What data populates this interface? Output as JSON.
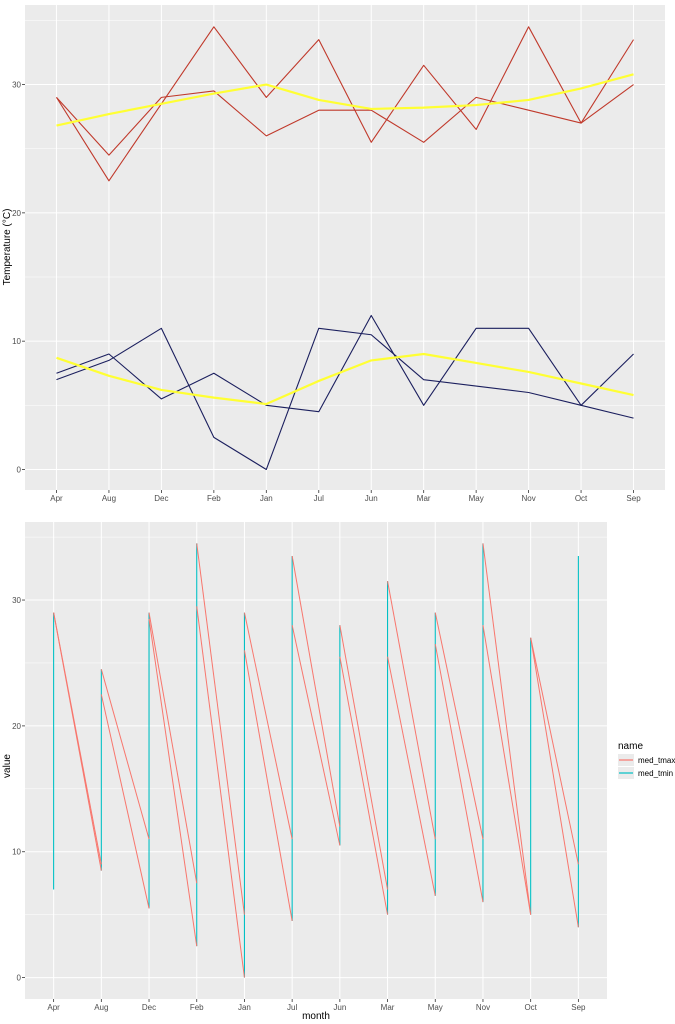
{
  "chart_data": [
    {
      "type": "line",
      "title": "",
      "xlabel": "",
      "ylabel": "Temperature (°C)",
      "categories": [
        "Apr",
        "Aug",
        "Dec",
        "Feb",
        "Jan",
        "Jul",
        "Jun",
        "Mar",
        "May",
        "Nov",
        "Oct",
        "Sep"
      ],
      "yticks": [
        0,
        10,
        20,
        30
      ],
      "ylim": [
        -1.6,
        36.2
      ],
      "grid": true,
      "background": "#ebebeb",
      "series": [
        {
          "color": "#c0392b",
          "kind": "line",
          "values": [
            29,
            22.5,
            28.5,
            34.5,
            29,
            33.5,
            25.5,
            31.5,
            26.5,
            34.5,
            27,
            33.5
          ]
        },
        {
          "color": "#c0392b",
          "kind": "line",
          "values": [
            29,
            24.5,
            29,
            29.5,
            26,
            28,
            28,
            25.5,
            29,
            28,
            27,
            30
          ]
        },
        {
          "color": "#1b1f5e",
          "kind": "line",
          "values": [
            7.5,
            9,
            5.5,
            7.5,
            5,
            4.5,
            12,
            5,
            11,
            11,
            5,
            9
          ]
        },
        {
          "color": "#1b1f5e",
          "kind": "line",
          "values": [
            7,
            8.5,
            11,
            2.5,
            0,
            11,
            10.5,
            7,
            6.5,
            6,
            5,
            4
          ]
        },
        {
          "color": "#ffff33",
          "kind": "smooth",
          "values": [
            26.8,
            27.7,
            28.5,
            29.3,
            30,
            28.8,
            28.1,
            28.2,
            28.4,
            28.8,
            29.7,
            30.8
          ]
        },
        {
          "color": "#ffff33",
          "kind": "smooth",
          "values": [
            8.7,
            7.3,
            6.2,
            5.6,
            5.1,
            6.9,
            8.5,
            9,
            8.3,
            7.6,
            6.7,
            5.8
          ]
        }
      ]
    },
    {
      "type": "line",
      "title": "",
      "xlabel": "month",
      "ylabel": "value",
      "categories": [
        "Apr",
        "Aug",
        "Dec",
        "Feb",
        "Jan",
        "Jul",
        "Jun",
        "Mar",
        "May",
        "Nov",
        "Oct",
        "Sep"
      ],
      "yticks": [
        0,
        10,
        20,
        30
      ],
      "ylim": [
        -1.7,
        36.2
      ],
      "grid": true,
      "background": "#ebebeb",
      "legend": {
        "title": "name",
        "position": "right"
      },
      "series": [
        {
          "name": "med_tmax",
          "color": "#F8766D",
          "values": [
            [
              29,
              29
            ],
            [
              24.5,
              22.5
            ],
            [
              29,
              28.5
            ],
            [
              34.5,
              29.5
            ],
            [
              29,
              26
            ],
            [
              33.5,
              28
            ],
            [
              28,
              25.5
            ],
            [
              31.5,
              25.5
            ],
            [
              29,
              26.5
            ],
            [
              34.5,
              28
            ],
            [
              27,
              27
            ],
            [
              33.5,
              30
            ]
          ]
        },
        {
          "name": "med_tmin",
          "color": "#00BFC4",
          "values": [
            [
              7.5,
              7
            ],
            [
              9,
              8.5
            ],
            [
              11,
              5.5
            ],
            [
              7.5,
              2.5
            ],
            [
              5,
              0
            ],
            [
              11,
              4.5
            ],
            [
              12,
              10.5
            ],
            [
              7,
              5
            ],
            [
              11,
              6.5
            ],
            [
              11,
              6
            ],
            [
              5,
              5
            ],
            [
              9,
              4
            ]
          ]
        }
      ]
    }
  ]
}
